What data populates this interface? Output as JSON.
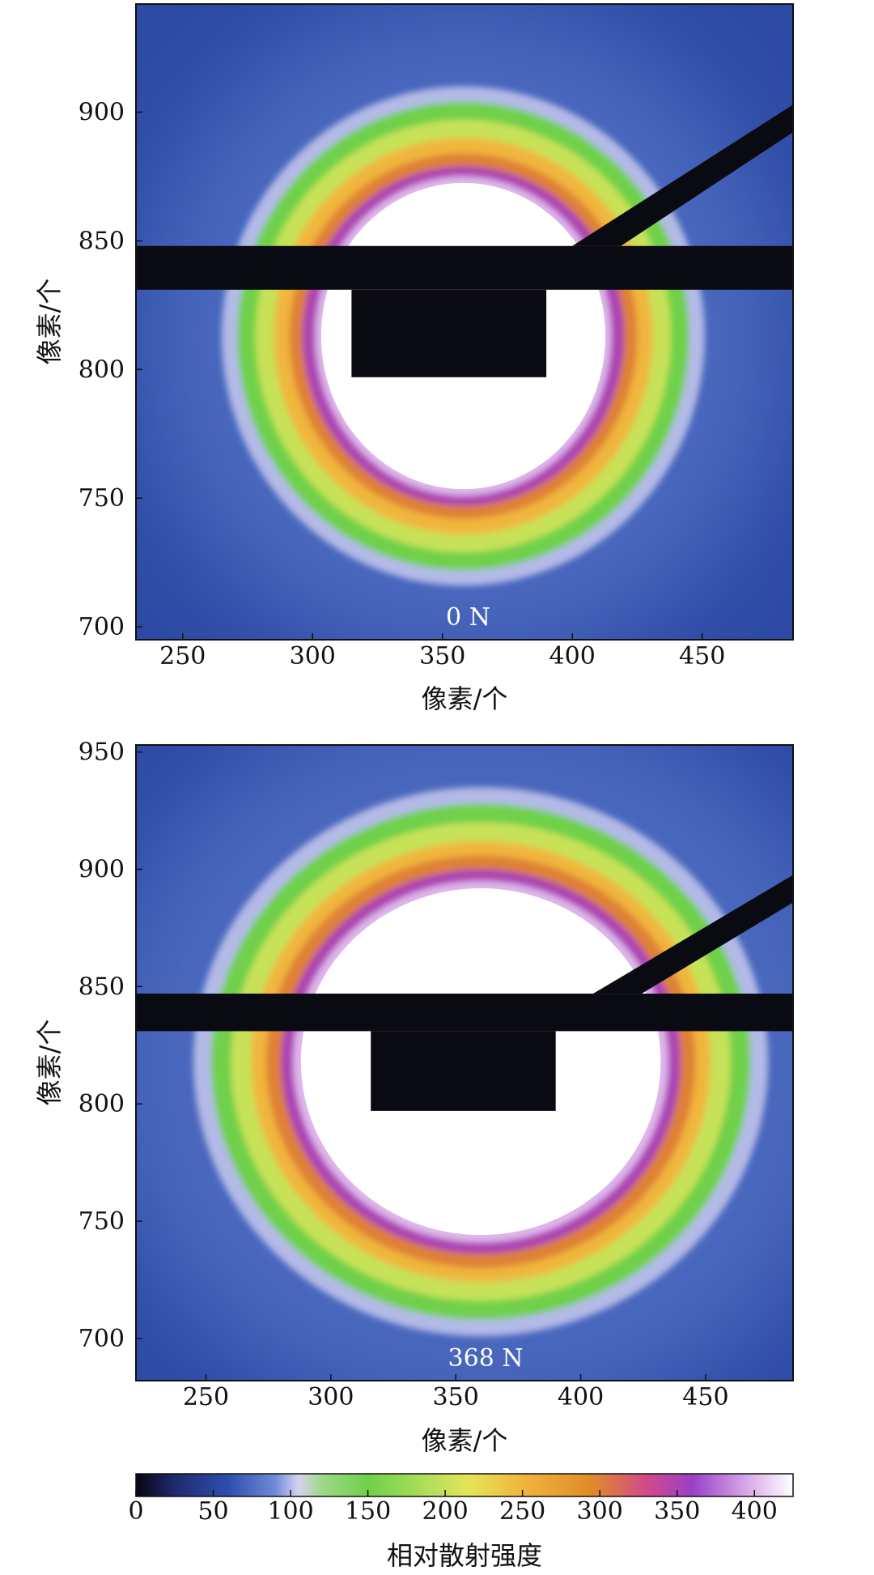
{
  "chart_data": [
    {
      "type": "heatmap",
      "panel_label": "0 N",
      "xlabel": "像素/个",
      "ylabel": "像素/个",
      "xlim": [
        232,
        485
      ],
      "ylim": [
        695,
        942
      ],
      "xticks": [
        250,
        300,
        350,
        400,
        450
      ],
      "yticks": [
        700,
        750,
        800,
        850,
        900
      ],
      "scattering_ring": {
        "center": [
          358,
          813
        ],
        "radii_by_intensity": [
          {
            "intensity": 400,
            "rx": 57,
            "ry": 62
          },
          {
            "intensity": 350,
            "rx": 62,
            "ry": 66
          },
          {
            "intensity": 300,
            "rx": 67,
            "ry": 71
          },
          {
            "intensity": 250,
            "rx": 73,
            "ry": 77
          },
          {
            "intensity": 200,
            "rx": 80,
            "ry": 84
          },
          {
            "intensity": 150,
            "rx": 87,
            "ry": 91
          },
          {
            "intensity": 100,
            "rx": 93,
            "ry": 97
          }
        ]
      },
      "beamstop": {
        "bar_y": [
          831,
          848
        ],
        "block_x": [
          315,
          390
        ],
        "block_y": [
          797,
          831
        ],
        "arm_from": [
          400,
          848
        ],
        "arm_to": [
          485,
          896
        ]
      }
    },
    {
      "type": "heatmap",
      "panel_label": "368 N",
      "xlabel": "像素/个",
      "ylabel": "像素/个",
      "xlim": [
        222,
        485
      ],
      "ylim": [
        682,
        953
      ],
      "xticks": [
        250,
        300,
        350,
        400,
        450
      ],
      "yticks": [
        700,
        750,
        800,
        850,
        900,
        950
      ],
      "scattering_ring": {
        "center": [
          360,
          818
        ],
        "radii_by_intensity": [
          {
            "intensity": 400,
            "rx": 75,
            "ry": 77
          },
          {
            "intensity": 350,
            "rx": 80,
            "ry": 82
          },
          {
            "intensity": 300,
            "rx": 86,
            "ry": 88
          },
          {
            "intensity": 250,
            "rx": 92,
            "ry": 94
          },
          {
            "intensity": 200,
            "rx": 100,
            "ry": 102
          },
          {
            "intensity": 150,
            "rx": 108,
            "ry": 110
          },
          {
            "intensity": 100,
            "rx": 115,
            "ry": 117
          }
        ]
      },
      "beamstop": {
        "bar_y": [
          831,
          847
        ],
        "block_x": [
          316,
          390
        ],
        "block_y": [
          797,
          831
        ],
        "arm_from": [
          405,
          847
        ],
        "arm_to": [
          485,
          890
        ]
      }
    }
  ],
  "colorbar": {
    "label": "相对散射强度",
    "range": [
      0,
      425
    ],
    "ticks": [
      0,
      50,
      100,
      150,
      200,
      250,
      300,
      350,
      400
    ],
    "stops": [
      {
        "value": 0,
        "color": "#050510"
      },
      {
        "value": 25,
        "color": "#1f2a6e"
      },
      {
        "value": 60,
        "color": "#2f4fad"
      },
      {
        "value": 90,
        "color": "#6f8ad8"
      },
      {
        "value": 105,
        "color": "#d6d2ef"
      },
      {
        "value": 120,
        "color": "#9fd88a"
      },
      {
        "value": 150,
        "color": "#6fd04a"
      },
      {
        "value": 190,
        "color": "#b4e05a"
      },
      {
        "value": 215,
        "color": "#e4e458"
      },
      {
        "value": 250,
        "color": "#f0b63c"
      },
      {
        "value": 295,
        "color": "#e08a28"
      },
      {
        "value": 330,
        "color": "#d14a8a"
      },
      {
        "value": 360,
        "color": "#9a40c8"
      },
      {
        "value": 395,
        "color": "#d8a8e8"
      },
      {
        "value": 425,
        "color": "#ffffff"
      }
    ]
  },
  "colors": {
    "beamstop": "#0a0a12",
    "axis": "#111111"
  }
}
